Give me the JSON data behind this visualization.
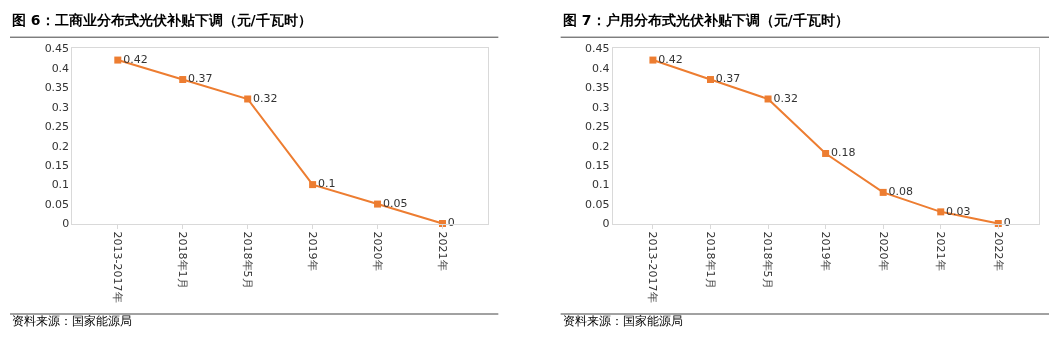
{
  "chart_data": [
    {
      "type": "line",
      "title": "图 6：工商业分布式光伏补贴下调（元/千瓦时）",
      "categories": [
        "2013-2017年",
        "2018年1月",
        "2018年5月",
        "2019年",
        "2020年",
        "2021年"
      ],
      "values": [
        0.42,
        0.37,
        0.32,
        0.1,
        0.05,
        0
      ],
      "color": "#ed7d31",
      "marker": "square",
      "data_labels": true,
      "ylim": [
        0,
        0.45
      ],
      "yticks": [
        0,
        0.05,
        0.1,
        0.15,
        0.2,
        0.25,
        0.3,
        0.35,
        0.4,
        0.45
      ],
      "annotations": [
        "资料来源：国家能源局"
      ]
    },
    {
      "type": "line",
      "title": "图 7：户用分布式光伏补贴下调（元/千瓦时）",
      "categories": [
        "2013-2017年",
        "2018年1月",
        "2018年5月",
        "2019年",
        "2020年",
        "2021年",
        "2022年"
      ],
      "values": [
        0.42,
        0.37,
        0.32,
        0.18,
        0.08,
        0.03,
        0
      ],
      "color": "#ed7d31",
      "marker": "square",
      "data_labels": true,
      "ylim": [
        0,
        0.45
      ],
      "yticks": [
        0,
        0.05,
        0.1,
        0.15,
        0.2,
        0.25,
        0.3,
        0.35,
        0.4,
        0.45
      ],
      "annotations": [
        "资料来源：国家能源局"
      ]
    }
  ]
}
